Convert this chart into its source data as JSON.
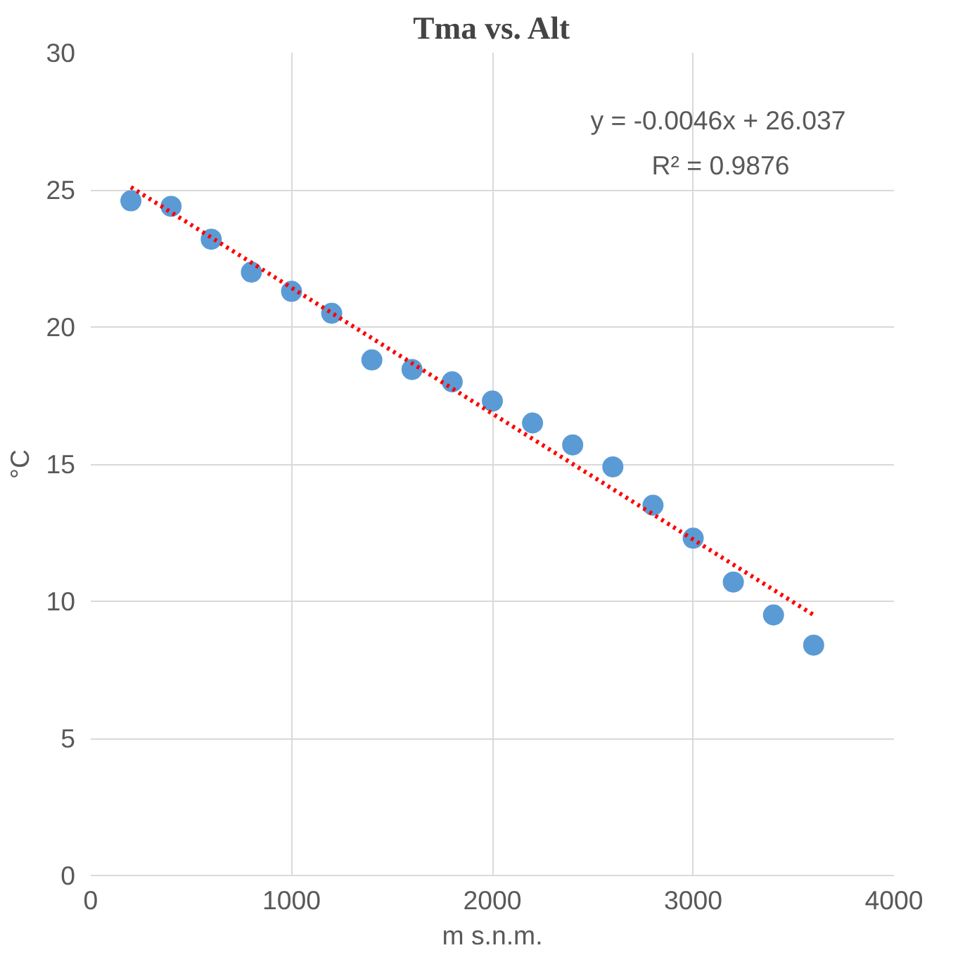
{
  "chart_data": {
    "type": "scatter",
    "title": "Tma vs. Alt",
    "xlabel": "m s.n.m.",
    "ylabel": "°C",
    "xlim": [
      0,
      4000
    ],
    "xticks": [
      0,
      1000,
      2000,
      3000,
      4000
    ],
    "ylim": [
      0,
      30
    ],
    "yticks": [
      0,
      5,
      10,
      15,
      20,
      25,
      30
    ],
    "grid": true,
    "annotations": [
      "y = -0.0046x + 26.037",
      "R² = 0.9876"
    ],
    "series": [
      {
        "color": "#5b9bd5",
        "marker": "circle",
        "x": [
          200,
          400,
          600,
          800,
          1000,
          1200,
          1400,
          1600,
          1800,
          2000,
          2200,
          2400,
          2600,
          2800,
          3000,
          3200,
          3400,
          3600
        ],
        "values": [
          24.6,
          24.4,
          23.2,
          22.0,
          21.3,
          20.5,
          18.8,
          18.45,
          18.0,
          17.3,
          16.5,
          15.7,
          14.9,
          13.5,
          12.3,
          10.7,
          9.5,
          8.4
        ]
      },
      {
        "type": "line",
        "color": "#ff0000",
        "line_style": "dotted",
        "marker": "none",
        "x": [
          200,
          3600
        ],
        "values": [
          25.1,
          9.5
        ]
      }
    ]
  }
}
